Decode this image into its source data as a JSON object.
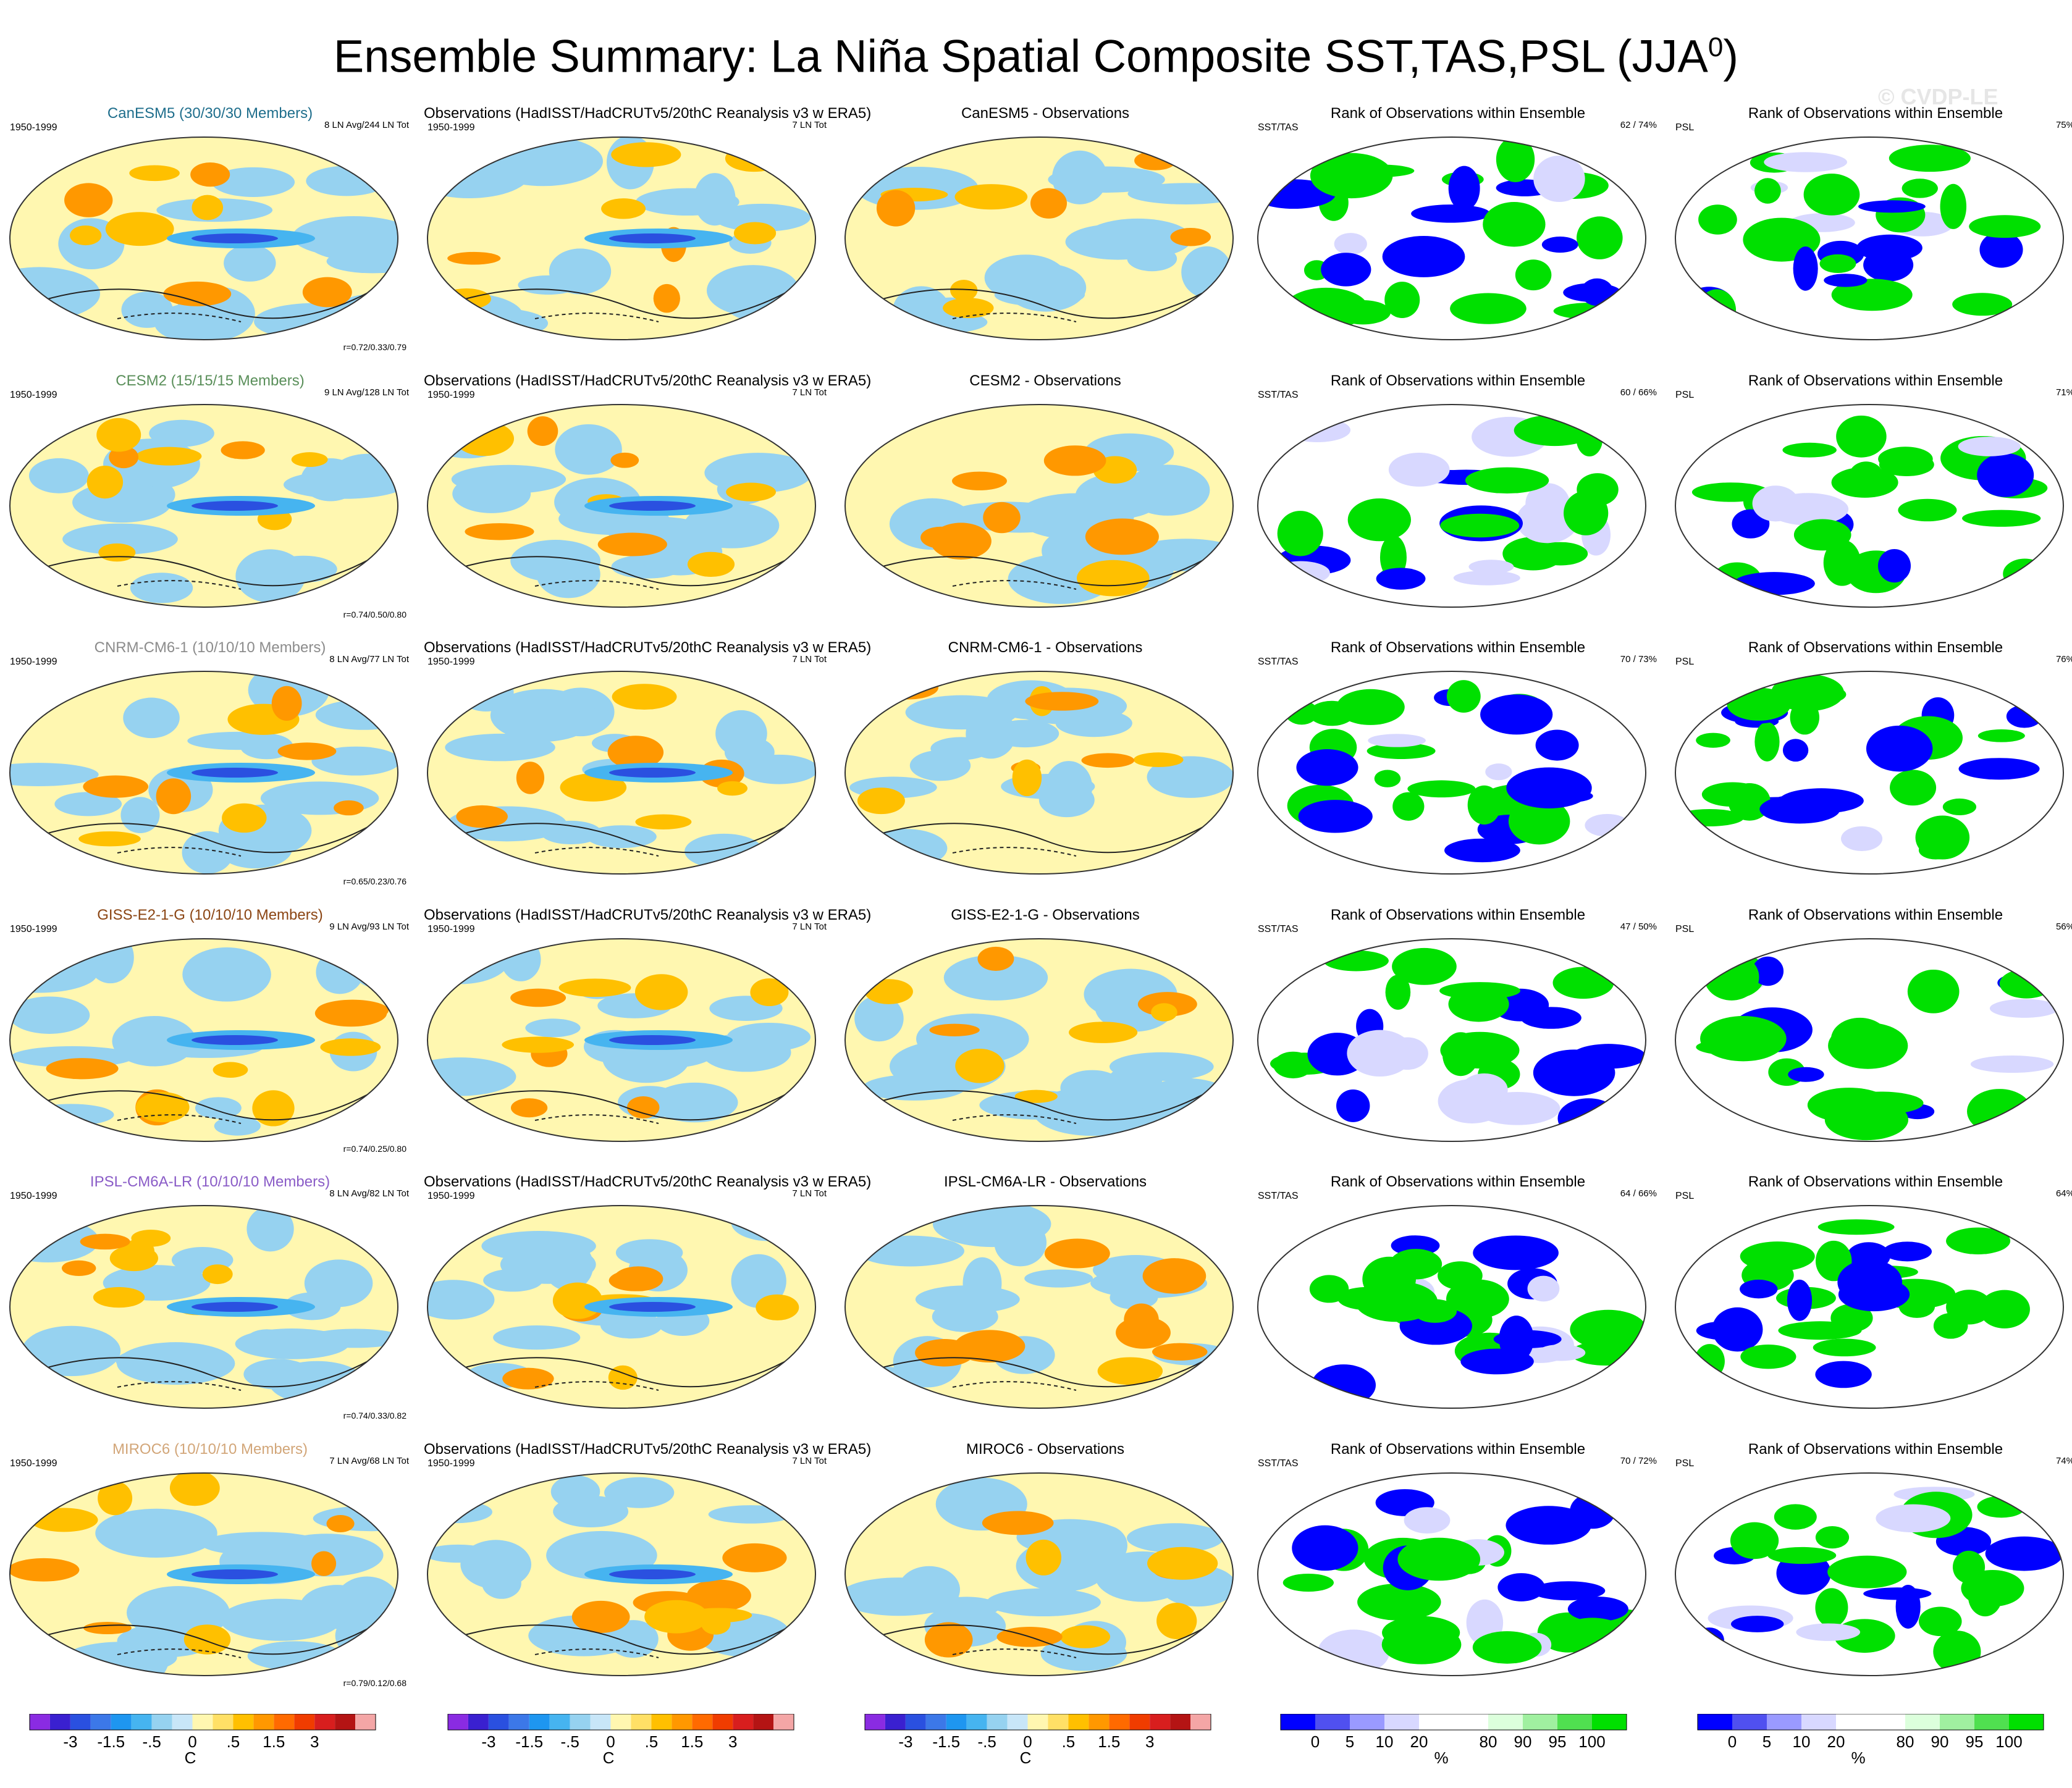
{
  "title": "Ensemble Summary: La Niña Spatial Composite SST,TAS,PSL (JJA",
  "title_sup": "0",
  "title_close": ")",
  "watermark": "© CVDP-LE",
  "obs_title": "Observations (HadISST/HadCRUTv5/20thC Reanalysis v3 w ERA5)",
  "rank_title": "Rank of Observations within Ensemble",
  "period": "1950-1999",
  "obs_count": "7 LN Tot",
  "sst_label": "SST/TAS",
  "psl_label": "PSL",
  "rows": [
    {
      "model_title": "CanESM5 (30/30/30 Members)",
      "color": "#1f6e8c",
      "ln": "8 LN Avg/244 LN Tot",
      "r": "r=0.72/0.33/0.79",
      "diff_title": "CanESM5 - Observations",
      "sst_rank": "62 /  74%",
      "psl_rank": "75%"
    },
    {
      "model_title": "CESM2 (15/15/15 Members)",
      "color": "#5a8f5a",
      "ln": "9 LN Avg/128 LN Tot",
      "r": "r=0.74/0.50/0.80",
      "diff_title": "CESM2 - Observations",
      "sst_rank": "60 /  66%",
      "psl_rank": "71%"
    },
    {
      "model_title": "CNRM-CM6-1 (10/10/10 Members)",
      "color": "#8c8c8c",
      "ln": "8 LN Avg/77 LN Tot",
      "r": "r=0.65/0.23/0.76",
      "diff_title": "CNRM-CM6-1 - Observations",
      "sst_rank": "70 /  73%",
      "psl_rank": "76%"
    },
    {
      "model_title": "GISS-E2-1-G (10/10/10 Members)",
      "color": "#8b4513",
      "ln": "9 LN Avg/93 LN Tot",
      "r": "r=0.74/0.25/0.80",
      "diff_title": "GISS-E2-1-G - Observations",
      "sst_rank": "47 /  50%",
      "psl_rank": "56%"
    },
    {
      "model_title": "IPSL-CM6A-LR (10/10/10 Members)",
      "color": "#8a5cc7",
      "ln": "8 LN Avg/82 LN Tot",
      "r": "r=0.74/0.33/0.82",
      "diff_title": "IPSL-CM6A-LR - Observations",
      "sst_rank": "64 /  66%",
      "psl_rank": "64%"
    },
    {
      "model_title": "MIROC6 (10/10/10 Members)",
      "color": "#d2a679",
      "ln": "7 LN Avg/68 LN Tot",
      "r": "r=0.79/0.12/0.68",
      "diff_title": "MIROC6 - Observations",
      "sst_rank": "70 /  72%",
      "psl_rank": "74%"
    }
  ],
  "temp_colorbar": {
    "colors": [
      "#8a2be2",
      "#3a20d0",
      "#2a50e0",
      "#3c78e8",
      "#1e96f0",
      "#46b4f0",
      "#96d2f0",
      "#c8e6f8",
      "#fff7b0",
      "#ffe066",
      "#ffc000",
      "#ff9800",
      "#ff6a00",
      "#f03c00",
      "#d81e1e",
      "#b41414",
      "#f4a6a6"
    ],
    "ticks": [
      "-3",
      "-1.5",
      "-.5",
      "0",
      ".5",
      "1.5",
      "3"
    ],
    "unit": "C"
  },
  "rank_colorbar": {
    "colors": [
      "#0000ff",
      "#5050f0",
      "#9a9aff",
      "#d8d8ff",
      "#ffffff",
      "#ffffff",
      "#dcffdc",
      "#a0f0a0",
      "#50e050",
      "#00e000"
    ],
    "ticks": [
      "0",
      "5",
      "10",
      "20",
      "80",
      "90",
      "95",
      "100"
    ],
    "unit": "%"
  }
}
